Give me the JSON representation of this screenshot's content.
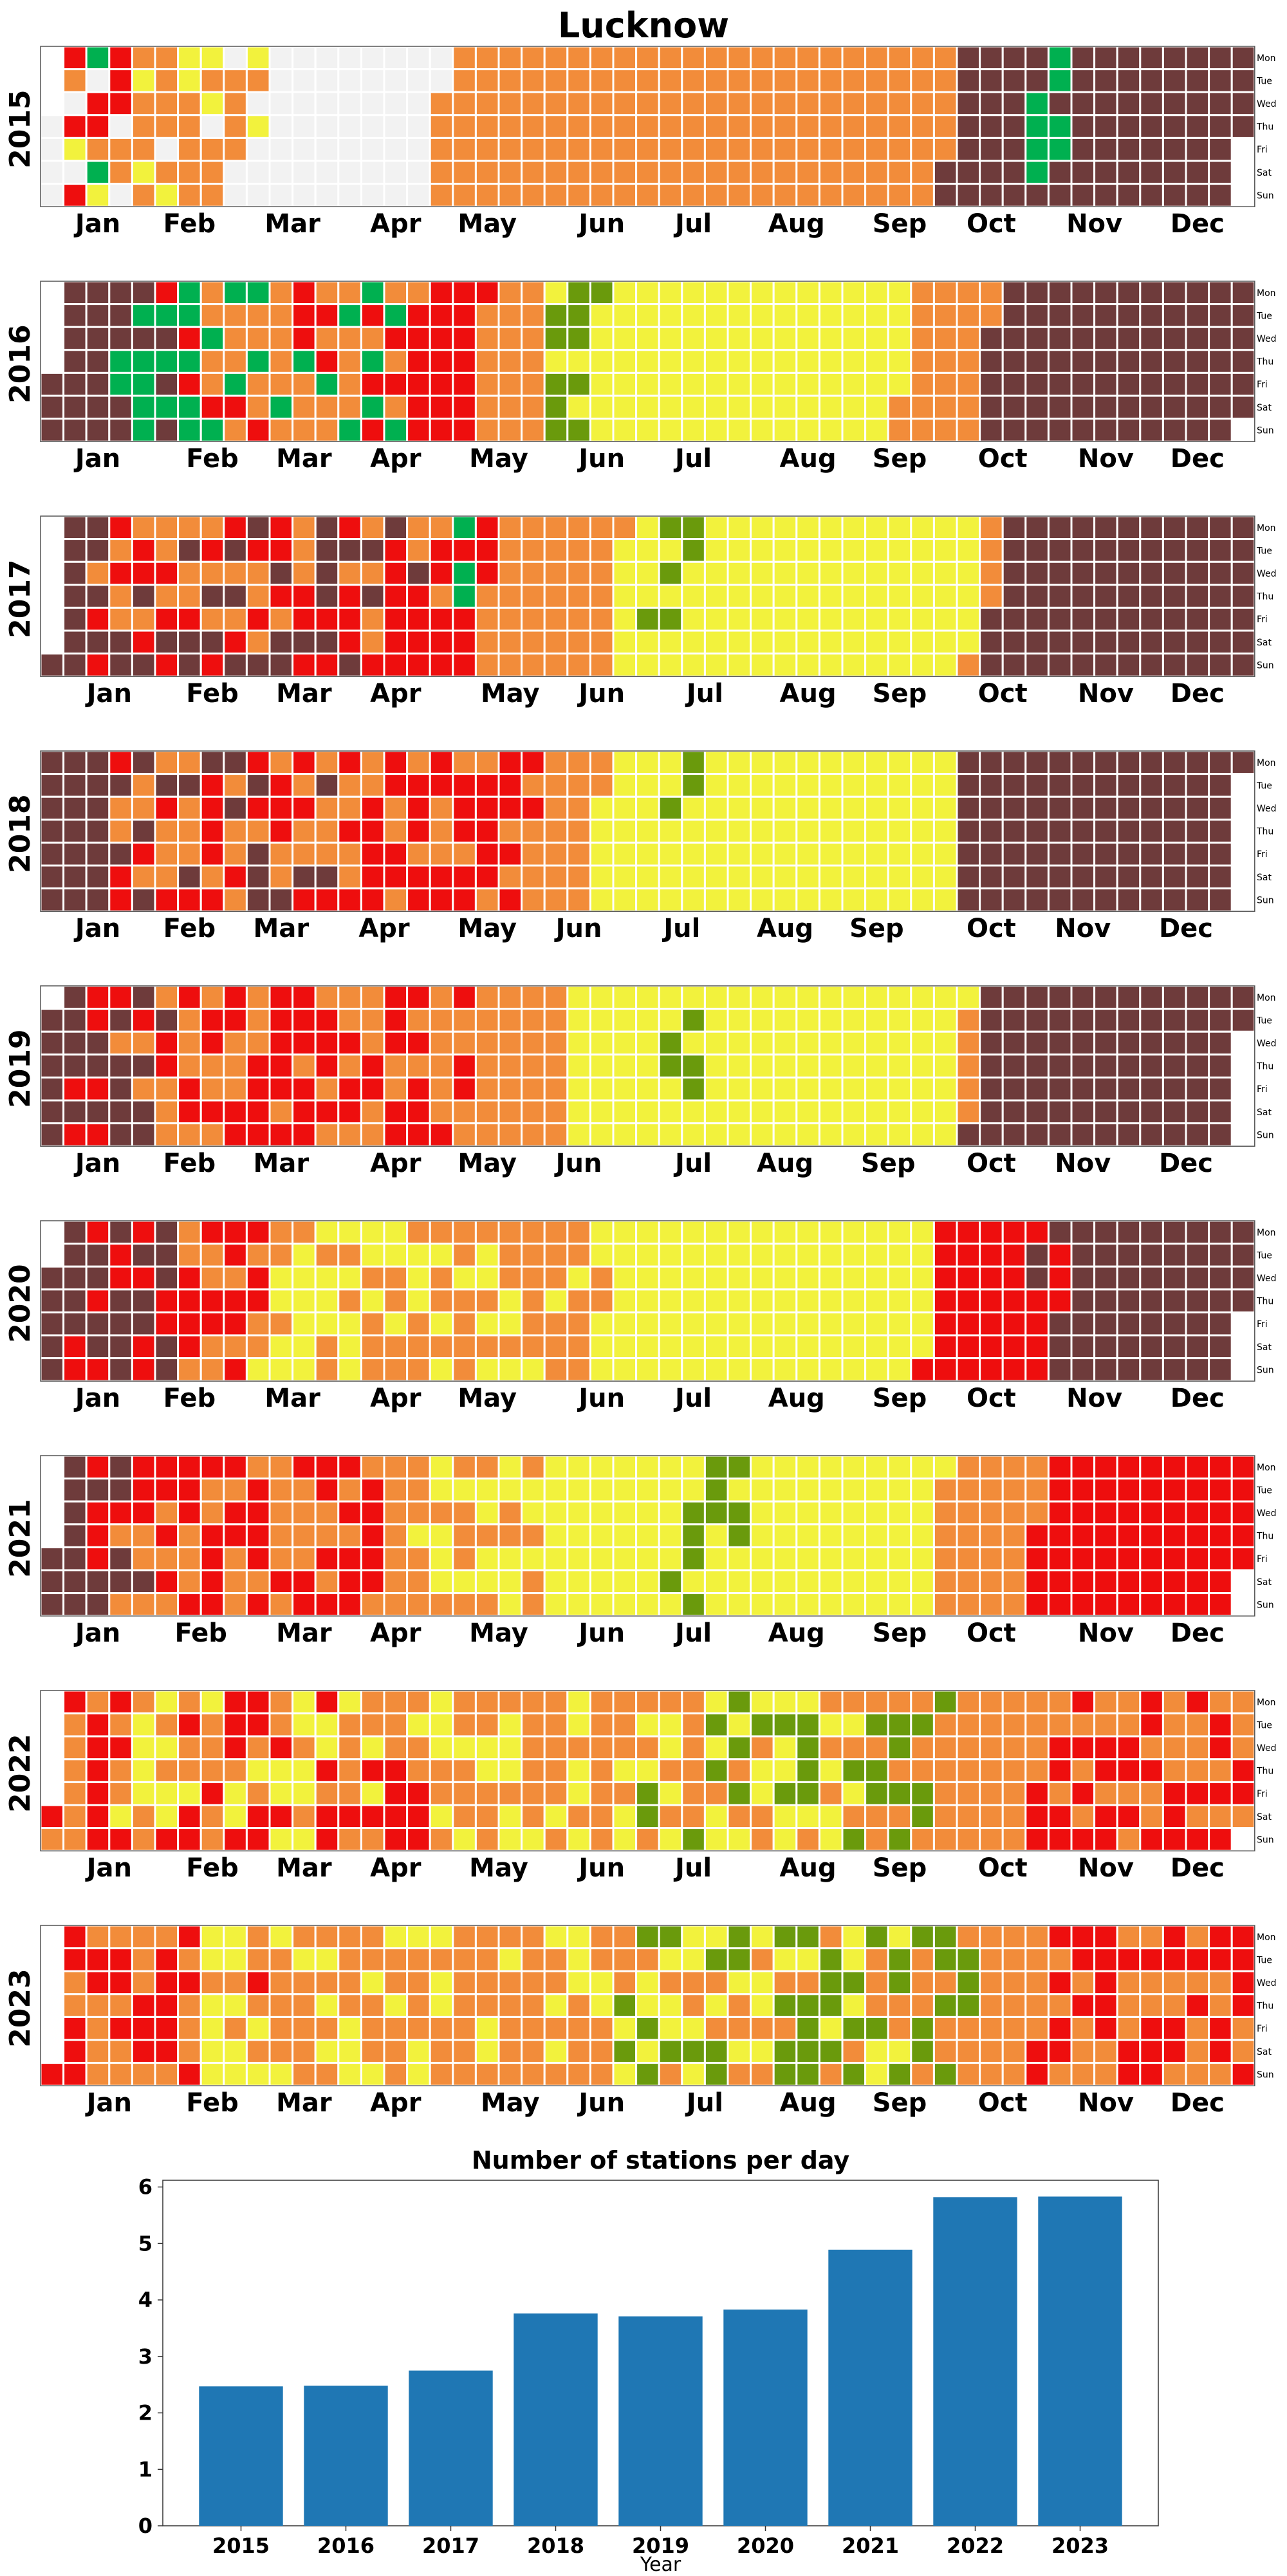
{
  "title": "Lucknow",
  "chart_data": [
    {
      "type": "heatmap",
      "description_kind": "calendar",
      "years": [
        "2015",
        "2016",
        "2017",
        "2018",
        "2019",
        "2020",
        "2021",
        "2022",
        "2023"
      ],
      "month_labels": [
        "Jan",
        "Feb",
        "Mar",
        "Apr",
        "May",
        "Jun",
        "Jul",
        "Aug",
        "Sep",
        "Oct",
        "Nov",
        "Dec"
      ],
      "weekday_labels": [
        "Mon",
        "Tue",
        "Wed",
        "Thu",
        "Fri",
        "Sat",
        "Sun"
      ],
      "category_colors": {
        "no_data": "#f2f2f2",
        "good": "#00b050",
        "satisfactory": "#6a9a0c",
        "moderate": "#f2f23d",
        "poor": "#f28c3a",
        "very_poor": "#ee0e0e",
        "severe": "#6e3b3b"
      },
      "category_series": [
        {
          "year": "2015",
          "segments": [
            [
              "no_data",
              0,
              118
            ],
            [
              "moderate",
              4,
              60
            ],
            [
              "poor",
              4,
              60
            ],
            [
              "very_poor",
              4,
              20
            ],
            [
              "good",
              4,
              18
            ],
            [
              "satisfactory",
              4,
              5
            ],
            [
              "severe",
              275,
              90
            ],
            [
              "good",
              300,
              10
            ]
          ]
        },
        {
          "year": "2016",
          "segments": [
            [
              "severe",
              0,
              40
            ],
            [
              "good",
              20,
              90
            ],
            [
              "very_poor",
              30,
              100
            ],
            [
              "poor",
              40,
              70
            ],
            [
              "moderate",
              150,
              110
            ],
            [
              "satisfactory",
              150,
              15
            ],
            [
              "severe",
              285,
              81
            ]
          ]
        },
        {
          "year": "2017",
          "segments": [
            [
              "severe",
              0,
              110
            ],
            [
              "very_poor",
              10,
              120
            ],
            [
              "poor",
              10,
              110
            ],
            [
              "good",
              120,
              6
            ],
            [
              "moderate",
              170,
              110
            ],
            [
              "satisfactory",
              180,
              12
            ],
            [
              "severe",
              285,
              80
            ]
          ]
        },
        {
          "year": "2018",
          "segments": [
            [
              "severe",
              0,
              90
            ],
            [
              "very_poor",
              20,
              130
            ],
            [
              "poor",
              20,
              140
            ],
            [
              "moderate",
              170,
              110
            ],
            [
              "satisfactory",
              190,
              8
            ],
            [
              "severe",
              280,
              85
            ]
          ]
        },
        {
          "year": "2019",
          "segments": [
            [
              "severe",
              0,
              40
            ],
            [
              "very_poor",
              10,
              120
            ],
            [
              "poor",
              20,
              140
            ],
            [
              "moderate",
              160,
              120
            ],
            [
              "satisfactory",
              190,
              10
            ],
            [
              "severe",
              285,
              80
            ]
          ]
        },
        {
          "year": "2020",
          "segments": [
            [
              "severe",
              0,
              40
            ],
            [
              "very_poor",
              10,
              60
            ],
            [
              "poor",
              40,
              130
            ],
            [
              "moderate",
              60,
              210
            ],
            [
              "very_poor",
              270,
              40
            ],
            [
              "severe",
              300,
              66
            ]
          ]
        },
        {
          "year": "2021",
          "segments": [
            [
              "severe",
              0,
              30
            ],
            [
              "very_poor",
              10,
              90
            ],
            [
              "poor",
              20,
              130
            ],
            [
              "moderate",
              110,
              160
            ],
            [
              "satisfactory",
              190,
              20
            ],
            [
              "very_poor",
              300,
              65
            ]
          ]
        },
        {
          "year": "2022",
          "segments": [
            [
              "poor",
              0,
              365
            ],
            [
              "very_poor",
              0,
              120
            ],
            [
              "moderate",
              20,
              240
            ],
            [
              "satisfactory",
              180,
              90
            ],
            [
              "very_poor",
              300,
              65
            ]
          ]
        },
        {
          "year": "2023",
          "segments": [
            [
              "poor",
              0,
              365
            ],
            [
              "very_poor",
              0,
              60
            ],
            [
              "moderate",
              40,
              220
            ],
            [
              "satisfactory",
              170,
              110
            ],
            [
              "very_poor",
              300,
              65
            ]
          ]
        }
      ]
    },
    {
      "type": "bar",
      "title": "Number of stations per day",
      "xlabel": "Year",
      "ylabel": "",
      "categories": [
        "2015",
        "2016",
        "2017",
        "2018",
        "2019",
        "2020",
        "2021",
        "2022",
        "2023"
      ],
      "values": [
        2.47,
        2.48,
        2.75,
        3.76,
        3.71,
        3.83,
        4.89,
        5.82,
        5.83
      ],
      "ylim": [
        0,
        6.12
      ],
      "yticks": [
        "0",
        "1",
        "2",
        "3",
        "4",
        "5",
        "6"
      ],
      "bar_color": "#1f77b4",
      "grid": false
    }
  ]
}
